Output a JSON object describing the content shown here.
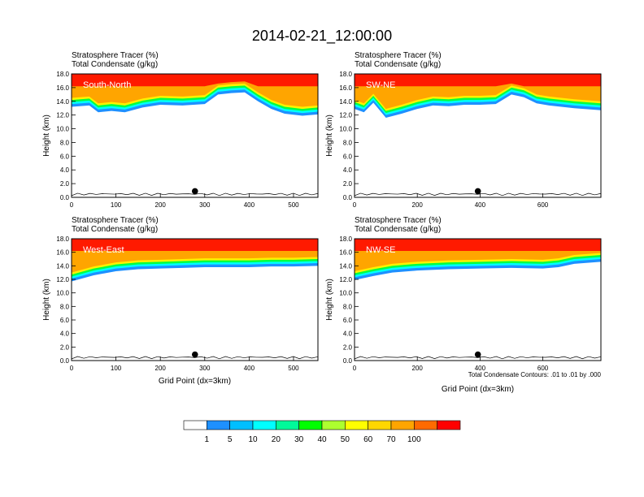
{
  "title": "2014-02-21_12:00:00",
  "chart_data": [
    {
      "type": "heatmap",
      "panel_label": "South-North",
      "header_lines": [
        "Stratosphere Tracer   (%)",
        "Total Condensate   (g/kg)"
      ],
      "xlabel": "",
      "ylabel": "Height (km)",
      "xlim": [
        0,
        555
      ],
      "ylim": [
        0,
        18
      ],
      "x_ticks": [
        "0",
        "100",
        "200",
        "300",
        "400",
        "500"
      ],
      "y_ticks": [
        "0.0",
        "2.0",
        "4.0",
        "6.0",
        "8.0",
        "10.0",
        "12.0",
        "14.0",
        "16.0",
        "18.0"
      ],
      "marker_x": 278,
      "tropopause": [
        [
          0,
          14.8
        ],
        [
          40,
          15.0
        ],
        [
          60,
          14.0
        ],
        [
          90,
          14.2
        ],
        [
          120,
          14.0
        ],
        [
          160,
          14.7
        ],
        [
          200,
          15.1
        ],
        [
          250,
          15.0
        ],
        [
          300,
          15.2
        ],
        [
          330,
          16.6
        ],
        [
          360,
          16.8
        ],
        [
          390,
          16.9
        ],
        [
          420,
          15.6
        ],
        [
          450,
          14.5
        ],
        [
          480,
          13.8
        ],
        [
          520,
          13.5
        ],
        [
          555,
          13.7
        ]
      ]
    },
    {
      "type": "heatmap",
      "panel_label": "SW-NE",
      "header_lines": [
        "Stratosphere Tracer   (%)",
        "Total Condensate   (g/kg)"
      ],
      "xlabel": "",
      "ylabel": "Height (km)",
      "xlim": [
        0,
        785
      ],
      "ylim": [
        0,
        18
      ],
      "x_ticks": [
        "0",
        "200",
        "400",
        "600"
      ],
      "y_ticks": [
        "0.0",
        "2.0",
        "4.0",
        "6.0",
        "8.0",
        "10.0",
        "12.0",
        "14.0",
        "16.0",
        "18.0"
      ],
      "marker_x": 393,
      "tropopause": [
        [
          0,
          14.5
        ],
        [
          30,
          14.0
        ],
        [
          60,
          15.4
        ],
        [
          100,
          13.2
        ],
        [
          150,
          13.8
        ],
        [
          200,
          14.5
        ],
        [
          250,
          15.0
        ],
        [
          300,
          14.9
        ],
        [
          350,
          15.1
        ],
        [
          400,
          15.1
        ],
        [
          450,
          15.2
        ],
        [
          500,
          16.6
        ],
        [
          540,
          16.2
        ],
        [
          580,
          15.3
        ],
        [
          620,
          15.0
        ],
        [
          700,
          14.6
        ],
        [
          785,
          14.3
        ]
      ]
    },
    {
      "type": "heatmap",
      "panel_label": "West-East",
      "header_lines": [
        "Stratosphere Tracer   (%)",
        "Total Condensate   (g/kg)"
      ],
      "xlabel": "Grid Point (dx=3km)",
      "ylabel": "Height (km)",
      "xlim": [
        0,
        555
      ],
      "ylim": [
        0,
        18
      ],
      "x_ticks": [
        "0",
        "100",
        "200",
        "300",
        "400",
        "500"
      ],
      "y_ticks": [
        "0.0",
        "2.0",
        "4.0",
        "6.0",
        "8.0",
        "10.0",
        "12.0",
        "14.0",
        "16.0",
        "18.0"
      ],
      "marker_x": 278,
      "tropopause": [
        [
          0,
          13.3
        ],
        [
          50,
          14.2
        ],
        [
          100,
          14.8
        ],
        [
          150,
          15.1
        ],
        [
          200,
          15.2
        ],
        [
          250,
          15.3
        ],
        [
          300,
          15.4
        ],
        [
          350,
          15.4
        ],
        [
          400,
          15.4
        ],
        [
          450,
          15.5
        ],
        [
          500,
          15.5
        ],
        [
          555,
          15.6
        ]
      ]
    },
    {
      "type": "heatmap",
      "panel_label": "NW-SE",
      "header_lines": [
        "Stratosphere Tracer   (%)",
        "Total Condensate   (g/kg)"
      ],
      "xlabel": "Grid Point (dx=3km)",
      "ylabel": "Height (km)",
      "xlim": [
        0,
        785
      ],
      "ylim": [
        0,
        18
      ],
      "x_ticks": [
        "0",
        "200",
        "400",
        "600"
      ],
      "y_ticks": [
        "0.0",
        "2.0",
        "4.0",
        "6.0",
        "8.0",
        "10.0",
        "12.0",
        "14.0",
        "16.0",
        "18.0"
      ],
      "marker_x": 393,
      "tropopause": [
        [
          0,
          13.5
        ],
        [
          60,
          14.1
        ],
        [
          120,
          14.6
        ],
        [
          200,
          14.9
        ],
        [
          300,
          15.1
        ],
        [
          400,
          15.2
        ],
        [
          500,
          15.3
        ],
        [
          600,
          15.2
        ],
        [
          650,
          15.4
        ],
        [
          700,
          15.9
        ],
        [
          785,
          16.2
        ]
      ],
      "note": "Total Condensate Contours: .01 to .01 by .000"
    }
  ],
  "colorbar": {
    "labels": [
      "1",
      "5",
      "10",
      "20",
      "30",
      "40",
      "50",
      "60",
      "70",
      "100"
    ],
    "colors": [
      "#ffffff",
      "#1e90ff",
      "#00bfff",
      "#00ffff",
      "#00fa9a",
      "#00ff00",
      "#adff2f",
      "#ffff00",
      "#ffd700",
      "#ffa500",
      "#ff6a00",
      "#ff0000"
    ]
  }
}
